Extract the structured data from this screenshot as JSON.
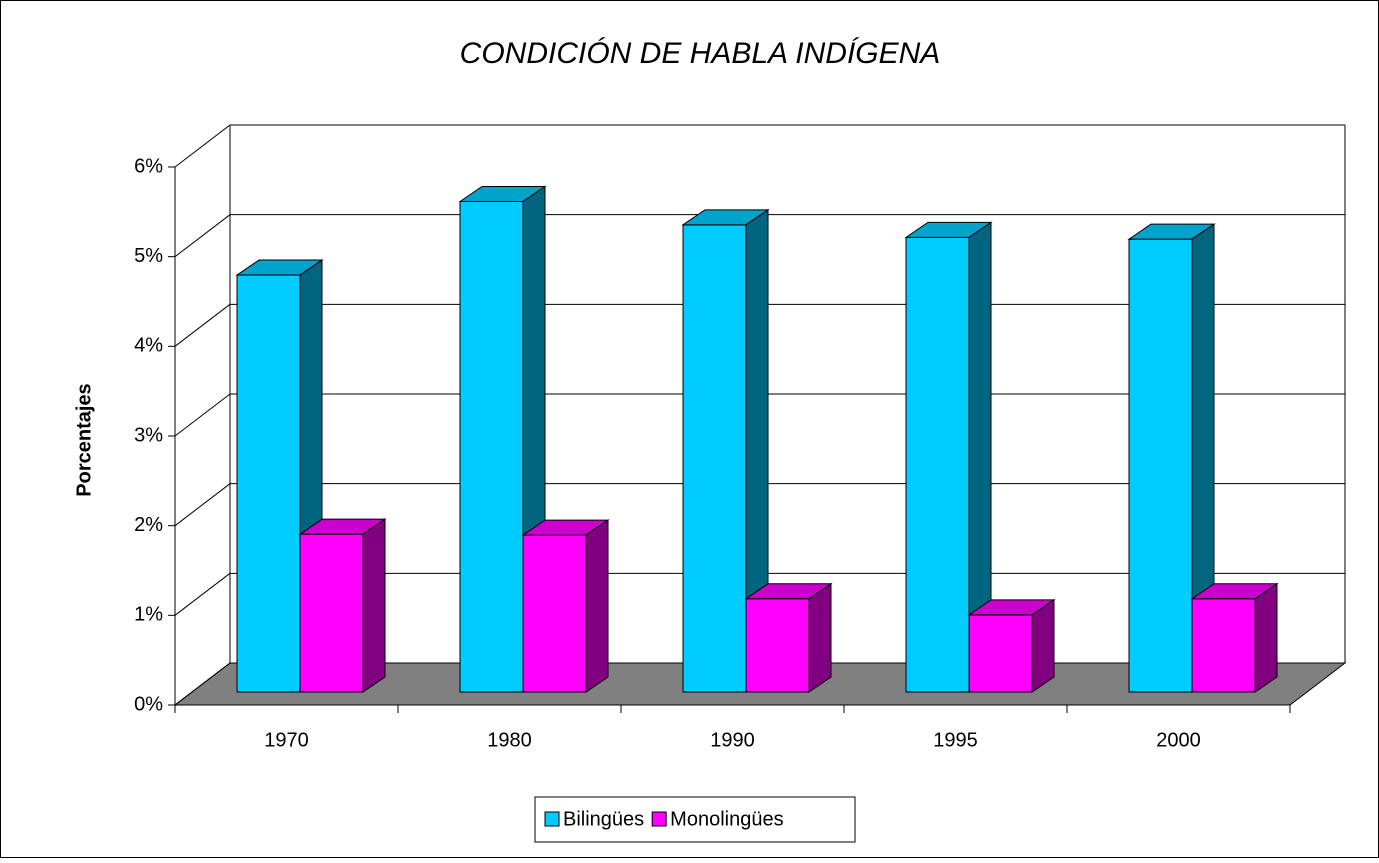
{
  "chart_data": {
    "type": "bar3d",
    "title": "CONDICIÓN DE HABLA INDÍGENA",
    "y_label": "Porcentajes",
    "categories": [
      "1970",
      "1980",
      "1990",
      "1995",
      "2000"
    ],
    "series": [
      {
        "name": "Bilingües",
        "color": "#00ccff",
        "values": [
          4.65,
          5.47,
          5.21,
          5.07,
          5.05
        ]
      },
      {
        "name": "Monolingües",
        "color": "#ff00ff",
        "values": [
          1.76,
          1.75,
          1.04,
          0.86,
          1.04
        ]
      }
    ],
    "ylim": [
      0,
      6
    ],
    "yticks": [
      {
        "value": 0,
        "label": "0%"
      },
      {
        "value": 1,
        "label": "1%"
      },
      {
        "value": 2,
        "label": "2%"
      },
      {
        "value": 3,
        "label": "3%"
      },
      {
        "value": 4,
        "label": "4%"
      },
      {
        "value": 5,
        "label": "5%"
      },
      {
        "value": 6,
        "label": "6%"
      }
    ],
    "grid": true,
    "legend": "bottom"
  }
}
